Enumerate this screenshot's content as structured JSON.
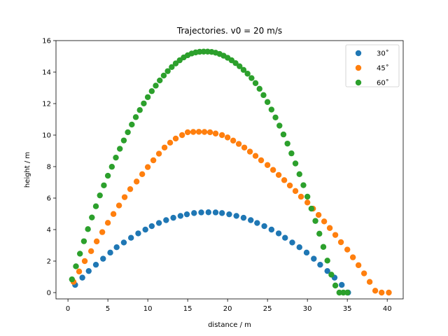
{
  "chart_data": {
    "type": "scatter",
    "title": "Trajectories. v0 = 20 m/s",
    "xlabel": "distance / m",
    "ylabel": "height / m",
    "xlim": [
      -1.5,
      42.0
    ],
    "ylim": [
      -0.4,
      16.0
    ],
    "xticks": [
      0,
      5,
      10,
      15,
      20,
      25,
      30,
      35,
      40
    ],
    "yticks": [
      0,
      2,
      4,
      6,
      8,
      10,
      12,
      14,
      16
    ],
    "grid": false,
    "legend_position": "top-right",
    "series": [
      {
        "name": "30$^\\circ$",
        "legend_label": "30˚",
        "color": "#1f77b4",
        "x": [
          0.9,
          1.8,
          2.6,
          3.5,
          4.4,
          5.3,
          6.1,
          7.0,
          7.9,
          8.8,
          9.7,
          10.5,
          11.4,
          12.3,
          13.2,
          14.1,
          14.9,
          15.8,
          16.7,
          17.6,
          18.5,
          19.3,
          20.2,
          21.1,
          22.0,
          22.9,
          23.7,
          24.6,
          25.5,
          26.4,
          27.2,
          28.1,
          29.0,
          29.9,
          30.8,
          31.6,
          32.5,
          33.4,
          34.3,
          35.1
        ],
        "y": [
          0.49,
          0.95,
          1.37,
          1.77,
          2.15,
          2.54,
          2.88,
          3.18,
          3.48,
          3.76,
          4.0,
          4.22,
          4.42,
          4.6,
          4.75,
          4.87,
          4.97,
          5.05,
          5.09,
          5.1,
          5.09,
          5.05,
          4.97,
          4.87,
          4.75,
          4.6,
          4.42,
          4.22,
          4.0,
          3.76,
          3.48,
          3.18,
          2.88,
          2.54,
          2.15,
          1.77,
          1.37,
          0.95,
          0.49,
          0.0
        ]
      },
      {
        "name": "45$^\\circ$",
        "legend_label": "45˚",
        "color": "#ff7f0e",
        "x": [
          0.7,
          1.4,
          2.1,
          2.9,
          3.6,
          4.3,
          5.0,
          5.7,
          6.4,
          7.1,
          7.8,
          8.6,
          9.3,
          10.0,
          10.7,
          11.4,
          12.1,
          12.8,
          13.5,
          14.3,
          15.0,
          15.7,
          16.4,
          17.1,
          17.8,
          18.5,
          19.3,
          20.0,
          20.7,
          21.4,
          22.1,
          22.8,
          23.5,
          24.2,
          25.0,
          25.7,
          26.4,
          27.1,
          27.8,
          28.5,
          29.2,
          30.0,
          30.7,
          31.4,
          32.1,
          32.8,
          33.5,
          34.2,
          35.0,
          35.7,
          36.4,
          37.1,
          37.8,
          38.5,
          39.3,
          40.2
        ],
        "y": [
          0.68,
          1.34,
          2.0,
          2.63,
          3.25,
          3.84,
          4.43,
          4.99,
          5.53,
          6.06,
          6.57,
          7.05,
          7.52,
          7.97,
          8.4,
          8.82,
          9.21,
          9.52,
          9.78,
          10.0,
          10.18,
          10.2,
          10.21,
          10.2,
          10.18,
          10.1,
          10.0,
          9.85,
          9.65,
          9.44,
          9.21,
          8.95,
          8.68,
          8.4,
          8.1,
          7.79,
          7.47,
          7.14,
          6.8,
          6.45,
          6.09,
          5.72,
          5.33,
          4.93,
          4.52,
          4.1,
          3.66,
          3.2,
          2.73,
          2.24,
          1.74,
          1.22,
          0.68,
          0.12,
          0.0,
          0.0
        ]
      },
      {
        "name": "60$^\\circ$",
        "legend_label": "60˚",
        "color": "#2ca02c",
        "x": [
          0.5,
          1.0,
          1.5,
          2.0,
          2.5,
          3.0,
          3.5,
          4.0,
          4.5,
          5.0,
          5.5,
          6.0,
          6.5,
          7.0,
          7.5,
          8.0,
          8.5,
          9.0,
          9.5,
          10.0,
          10.5,
          11.0,
          11.5,
          12.0,
          12.5,
          13.0,
          13.5,
          14.0,
          14.5,
          15.0,
          15.5,
          16.0,
          16.5,
          17.0,
          17.5,
          18.0,
          18.5,
          19.0,
          19.5,
          20.0,
          20.5,
          21.0,
          21.5,
          22.0,
          22.5,
          23.0,
          23.5,
          24.0,
          24.5,
          25.0,
          25.5,
          26.0,
          26.5,
          27.0,
          27.5,
          28.0,
          28.5,
          29.0,
          29.5,
          30.0,
          30.5,
          31.0,
          31.5,
          32.0,
          32.5,
          33.0,
          33.5,
          34.0,
          34.5,
          35.0
        ],
        "y": [
          0.84,
          1.67,
          2.47,
          3.26,
          4.03,
          4.77,
          5.48,
          6.17,
          6.81,
          7.42,
          7.99,
          8.57,
          9.13,
          9.66,
          10.18,
          10.67,
          11.14,
          11.59,
          12.01,
          12.41,
          12.79,
          13.14,
          13.47,
          13.78,
          14.06,
          14.32,
          14.55,
          14.75,
          14.93,
          15.07,
          15.18,
          15.25,
          15.29,
          15.3,
          15.3,
          15.28,
          15.23,
          15.15,
          15.04,
          14.91,
          14.75,
          14.57,
          14.37,
          14.14,
          13.9,
          13.62,
          13.3,
          12.94,
          12.54,
          12.1,
          11.62,
          11.12,
          10.6,
          10.04,
          9.46,
          8.84,
          8.2,
          7.52,
          6.82,
          6.09,
          5.33,
          4.55,
          3.74,
          2.9,
          2.03,
          1.14,
          0.45,
          0.0,
          0.0,
          0.0
        ]
      }
    ]
  }
}
